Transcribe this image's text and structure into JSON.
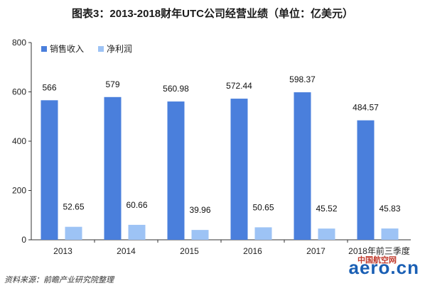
{
  "chart_data": {
    "type": "bar",
    "title": "图表3：2013-2018财年UTC公司经营业绩（单位：亿美元）",
    "categories": [
      "2013",
      "2014",
      "2015",
      "2016",
      "2017",
      "2018年前三季度"
    ],
    "series": [
      {
        "name": "销售收入",
        "values": [
          566,
          579,
          560.98,
          572.44,
          598.37,
          484.57
        ],
        "labels": [
          "566",
          "579",
          "560.98",
          "572.44",
          "598.37",
          "484.57"
        ],
        "color": "#4a7fdc"
      },
      {
        "name": "净利润",
        "values": [
          52.65,
          60.66,
          39.96,
          50.65,
          45.52,
          45.83
        ],
        "labels": [
          "52.65",
          "60.66",
          "39.96",
          "50.65",
          "45.52",
          "45.83"
        ],
        "color": "#9dc3f5"
      }
    ],
    "ylim": [
      0,
      800
    ],
    "yticks": [
      0,
      200,
      400,
      600,
      800
    ],
    "legend": "top-left",
    "grid": false
  },
  "source": "资料来源：前瞻产业研究院整理",
  "watermark": "aero.cn",
  "watermark_cn": "中国航空网"
}
